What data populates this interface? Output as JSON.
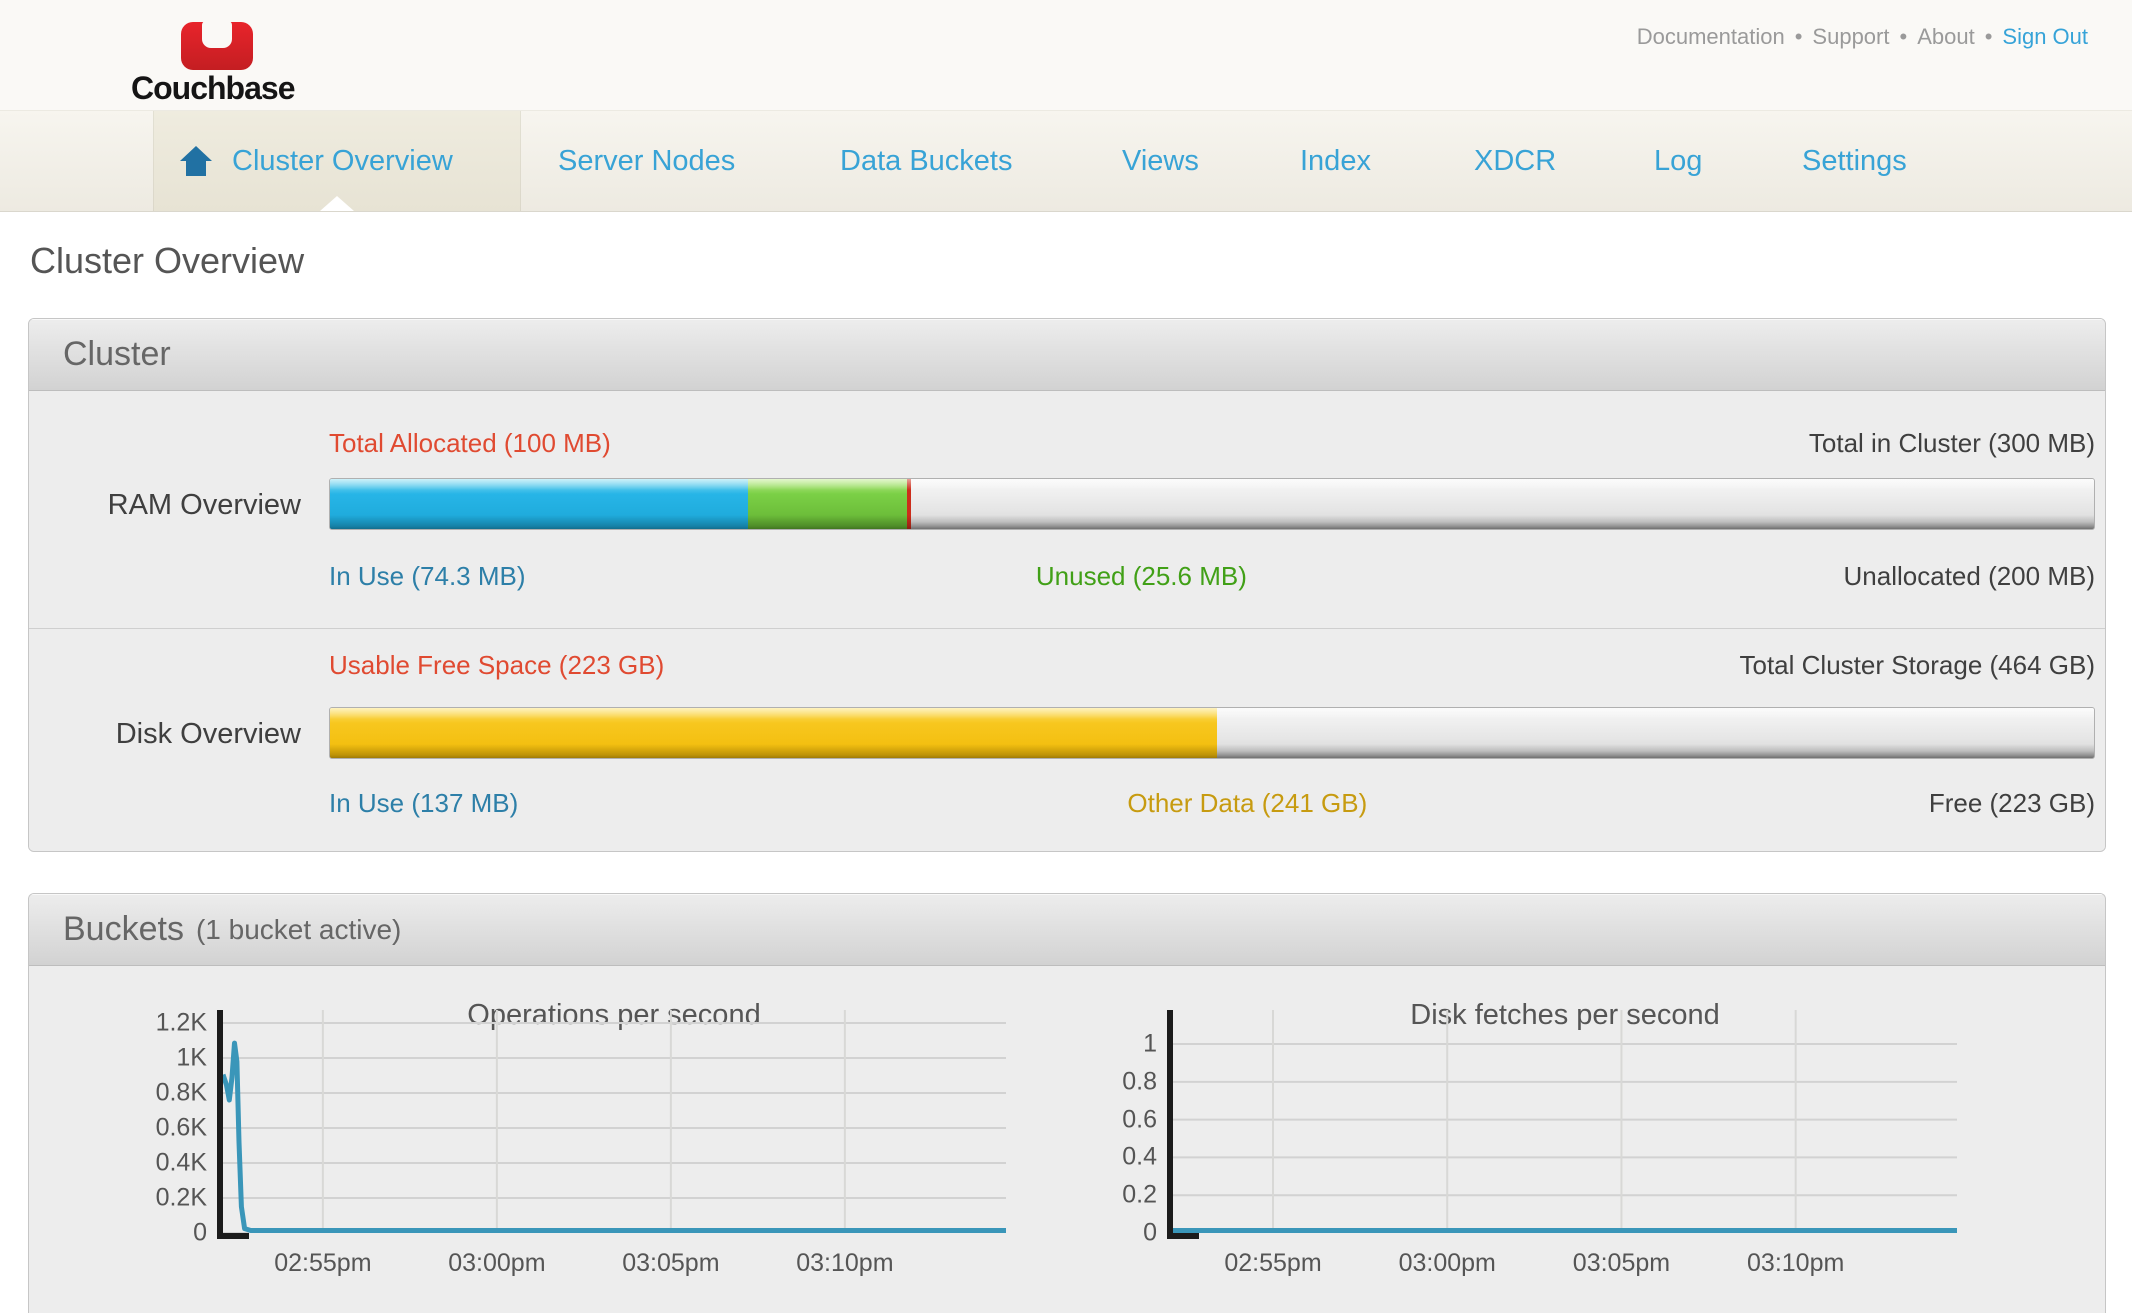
{
  "header": {
    "logo_text": "Couchbase",
    "link_separator": "•",
    "links": [
      {
        "label": "Documentation"
      },
      {
        "label": "Support"
      },
      {
        "label": "About"
      },
      {
        "label": "Sign Out"
      }
    ]
  },
  "nav": {
    "tabs": [
      {
        "label": "Cluster Overview",
        "active": true
      },
      {
        "label": "Server Nodes"
      },
      {
        "label": "Data Buckets"
      },
      {
        "label": "Views"
      },
      {
        "label": "Index"
      },
      {
        "label": "XDCR"
      },
      {
        "label": "Log"
      },
      {
        "label": "Settings"
      }
    ]
  },
  "page": {
    "title": "Cluster Overview"
  },
  "cluster_panel": {
    "title": "Cluster",
    "ram": {
      "row_label": "RAM Overview",
      "top_left_label": "Total Allocated (100 MB)",
      "top_right_label": "Total in Cluster (300 MB)",
      "bottom_left_label": "In Use (74.3 MB)",
      "bottom_mid_label": "Unused (25.6 MB)",
      "bottom_right_label": "Unallocated (200 MB)",
      "in_use_pct": 23.7,
      "unused_pct": 9.0,
      "allocated_marker_pct": 32.7,
      "mid_label_pos_pct": 46
    },
    "disk": {
      "row_label": "Disk Overview",
      "top_left_label": "Usable Free Space (223 GB)",
      "top_right_label": "Total Cluster Storage (464 GB)",
      "bottom_left_label": "In Use (137 MB)",
      "bottom_mid_label": "Other Data (241 GB)",
      "bottom_right_label": "Free (223 GB)",
      "used_pct": 50.3,
      "mid_label_pos_pct": 52
    }
  },
  "buckets_panel": {
    "title": "Buckets",
    "subtitle": "(1 bucket active)"
  },
  "chart_data": [
    {
      "type": "line",
      "title": "Operations per second",
      "ylim": [
        0,
        1274
      ],
      "x_range_minutes": 22.5,
      "grid": true,
      "y_ticks": [
        {
          "value": 0,
          "label": "0"
        },
        {
          "value": 200,
          "label": "0.2K"
        },
        {
          "value": 400,
          "label": "0.4K"
        },
        {
          "value": 600,
          "label": "0.6K"
        },
        {
          "value": 800,
          "label": "0.8K"
        },
        {
          "value": 1000,
          "label": "1K"
        },
        {
          "value": 1200,
          "label": "1.2K"
        }
      ],
      "x_ticks": [
        {
          "minute": 2.87,
          "label": "02:55pm"
        },
        {
          "minute": 7.87,
          "label": "03:00pm"
        },
        {
          "minute": 12.87,
          "label": "03:05pm"
        },
        {
          "minute": 17.87,
          "label": "03:10pm"
        }
      ],
      "series": [
        {
          "name": "ops_per_second",
          "color": "#3a96b9",
          "points": [
            [
              0,
              905
            ],
            [
              0.1,
              845
            ],
            [
              0.18,
              760
            ],
            [
              0.26,
              890
            ],
            [
              0.33,
              1085
            ],
            [
              0.4,
              980
            ],
            [
              0.46,
              520
            ],
            [
              0.53,
              150
            ],
            [
              0.62,
              25
            ],
            [
              0.8,
              10
            ],
            [
              22.5,
              10
            ]
          ]
        }
      ]
    },
    {
      "type": "line",
      "title": "Disk fetches per second",
      "ylim": [
        0,
        1.18
      ],
      "x_range_minutes": 22.5,
      "grid": true,
      "y_ticks": [
        {
          "value": 0,
          "label": "0"
        },
        {
          "value": 0.2,
          "label": "0.2"
        },
        {
          "value": 0.4,
          "label": "0.4"
        },
        {
          "value": 0.6,
          "label": "0.6"
        },
        {
          "value": 0.8,
          "label": "0.8"
        },
        {
          "value": 1,
          "label": "1"
        }
      ],
      "x_ticks": [
        {
          "minute": 2.87,
          "label": "02:55pm"
        },
        {
          "minute": 7.87,
          "label": "03:00pm"
        },
        {
          "minute": 12.87,
          "label": "03:05pm"
        },
        {
          "minute": 17.87,
          "label": "03:10pm"
        }
      ],
      "series": [
        {
          "name": "disk_fetches_per_second",
          "color": "#3a96b9",
          "points": [
            [
              0,
              0
            ],
            [
              22.5,
              0
            ]
          ]
        }
      ]
    }
  ],
  "colors": {
    "nav_link_blue": "#38a3d6",
    "home_icon_blue": "#2171a3",
    "logo_red": "#d21f26",
    "ram_in_use_blue": "#27b5e7",
    "ram_unused_green": "#7bd046",
    "allocated_marker_red": "#cc2d1b",
    "disk_used_yellow": "#f7c71f",
    "label_red": "#e04a31",
    "label_blue": "#2d7fa8",
    "label_green": "#41a017",
    "label_gold": "#c79b10",
    "chart_line_blue": "#3a96b9"
  }
}
